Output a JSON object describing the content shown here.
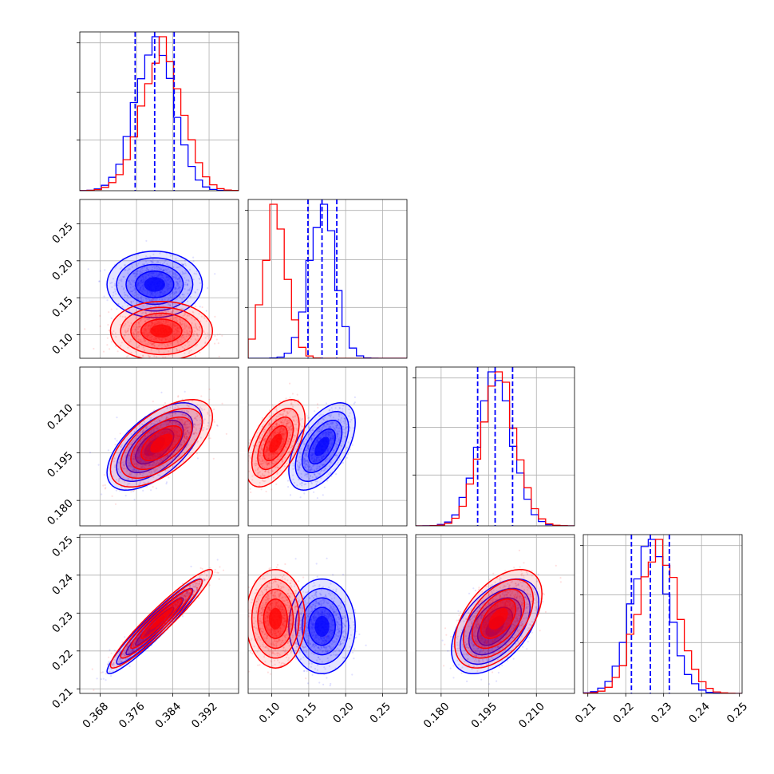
{
  "chart_data": {
    "type": "corner",
    "grid": true,
    "colors": {
      "series_a": "#0000ff",
      "series_b": "#ff0000",
      "quantile_lines": "#0000ff"
    },
    "series": [
      {
        "color": "#0000ff",
        "means": [
          0.38,
          0.168,
          0.197,
          0.2265
        ],
        "sigmas": [
          0.0042,
          0.018,
          0.0055,
          0.005
        ],
        "quantiles": [
          [
            0.3757,
            0.38,
            0.3843
          ],
          [
            0.149,
            0.168,
            0.188
          ],
          [
            0.1915,
            0.197,
            0.2025
          ],
          [
            0.2215,
            0.2265,
            0.2315
          ]
        ],
        "correlations": {
          "0-1": 0.0,
          "0-2": 0.6,
          "0-3": 0.95,
          "1-2": 0.55,
          "1-3": 0.0,
          "2-3": 0.5
        }
      },
      {
        "color": "#ff0000",
        "means": [
          0.3815,
          0.105,
          0.198,
          0.2285
        ],
        "sigmas": [
          0.0045,
          0.016,
          0.0055,
          0.0052
        ],
        "correlations": {
          "0-1": 0.0,
          "0-2": 0.6,
          "0-3": 0.95,
          "1-2": 0.55,
          "1-3": 0.0,
          "2-3": 0.5
        }
      }
    ],
    "axes": [
      {
        "range": [
          0.3635,
          0.3985
        ],
        "ticks": [
          "0.368",
          "0.376",
          "0.384",
          "0.392"
        ],
        "tick_values": [
          0.368,
          0.376,
          0.384,
          0.392
        ]
      },
      {
        "range": [
          0.068,
          0.283
        ],
        "ticks": [
          "0.10",
          "0.15",
          "0.20",
          "0.25"
        ],
        "tick_values": [
          0.1,
          0.15,
          0.2,
          0.25
        ]
      },
      {
        "range": [
          0.172,
          0.222
        ],
        "ticks": [
          "0.180",
          "0.195",
          "0.210"
        ],
        "tick_values": [
          0.18,
          0.195,
          0.21
        ]
      },
      {
        "range": [
          0.2088,
          0.2507
        ],
        "ticks": [
          "0.21",
          "0.22",
          "0.23",
          "0.24",
          "0.25"
        ],
        "tick_values": [
          0.21,
          0.22,
          0.23,
          0.24,
          0.25
        ]
      }
    ]
  }
}
